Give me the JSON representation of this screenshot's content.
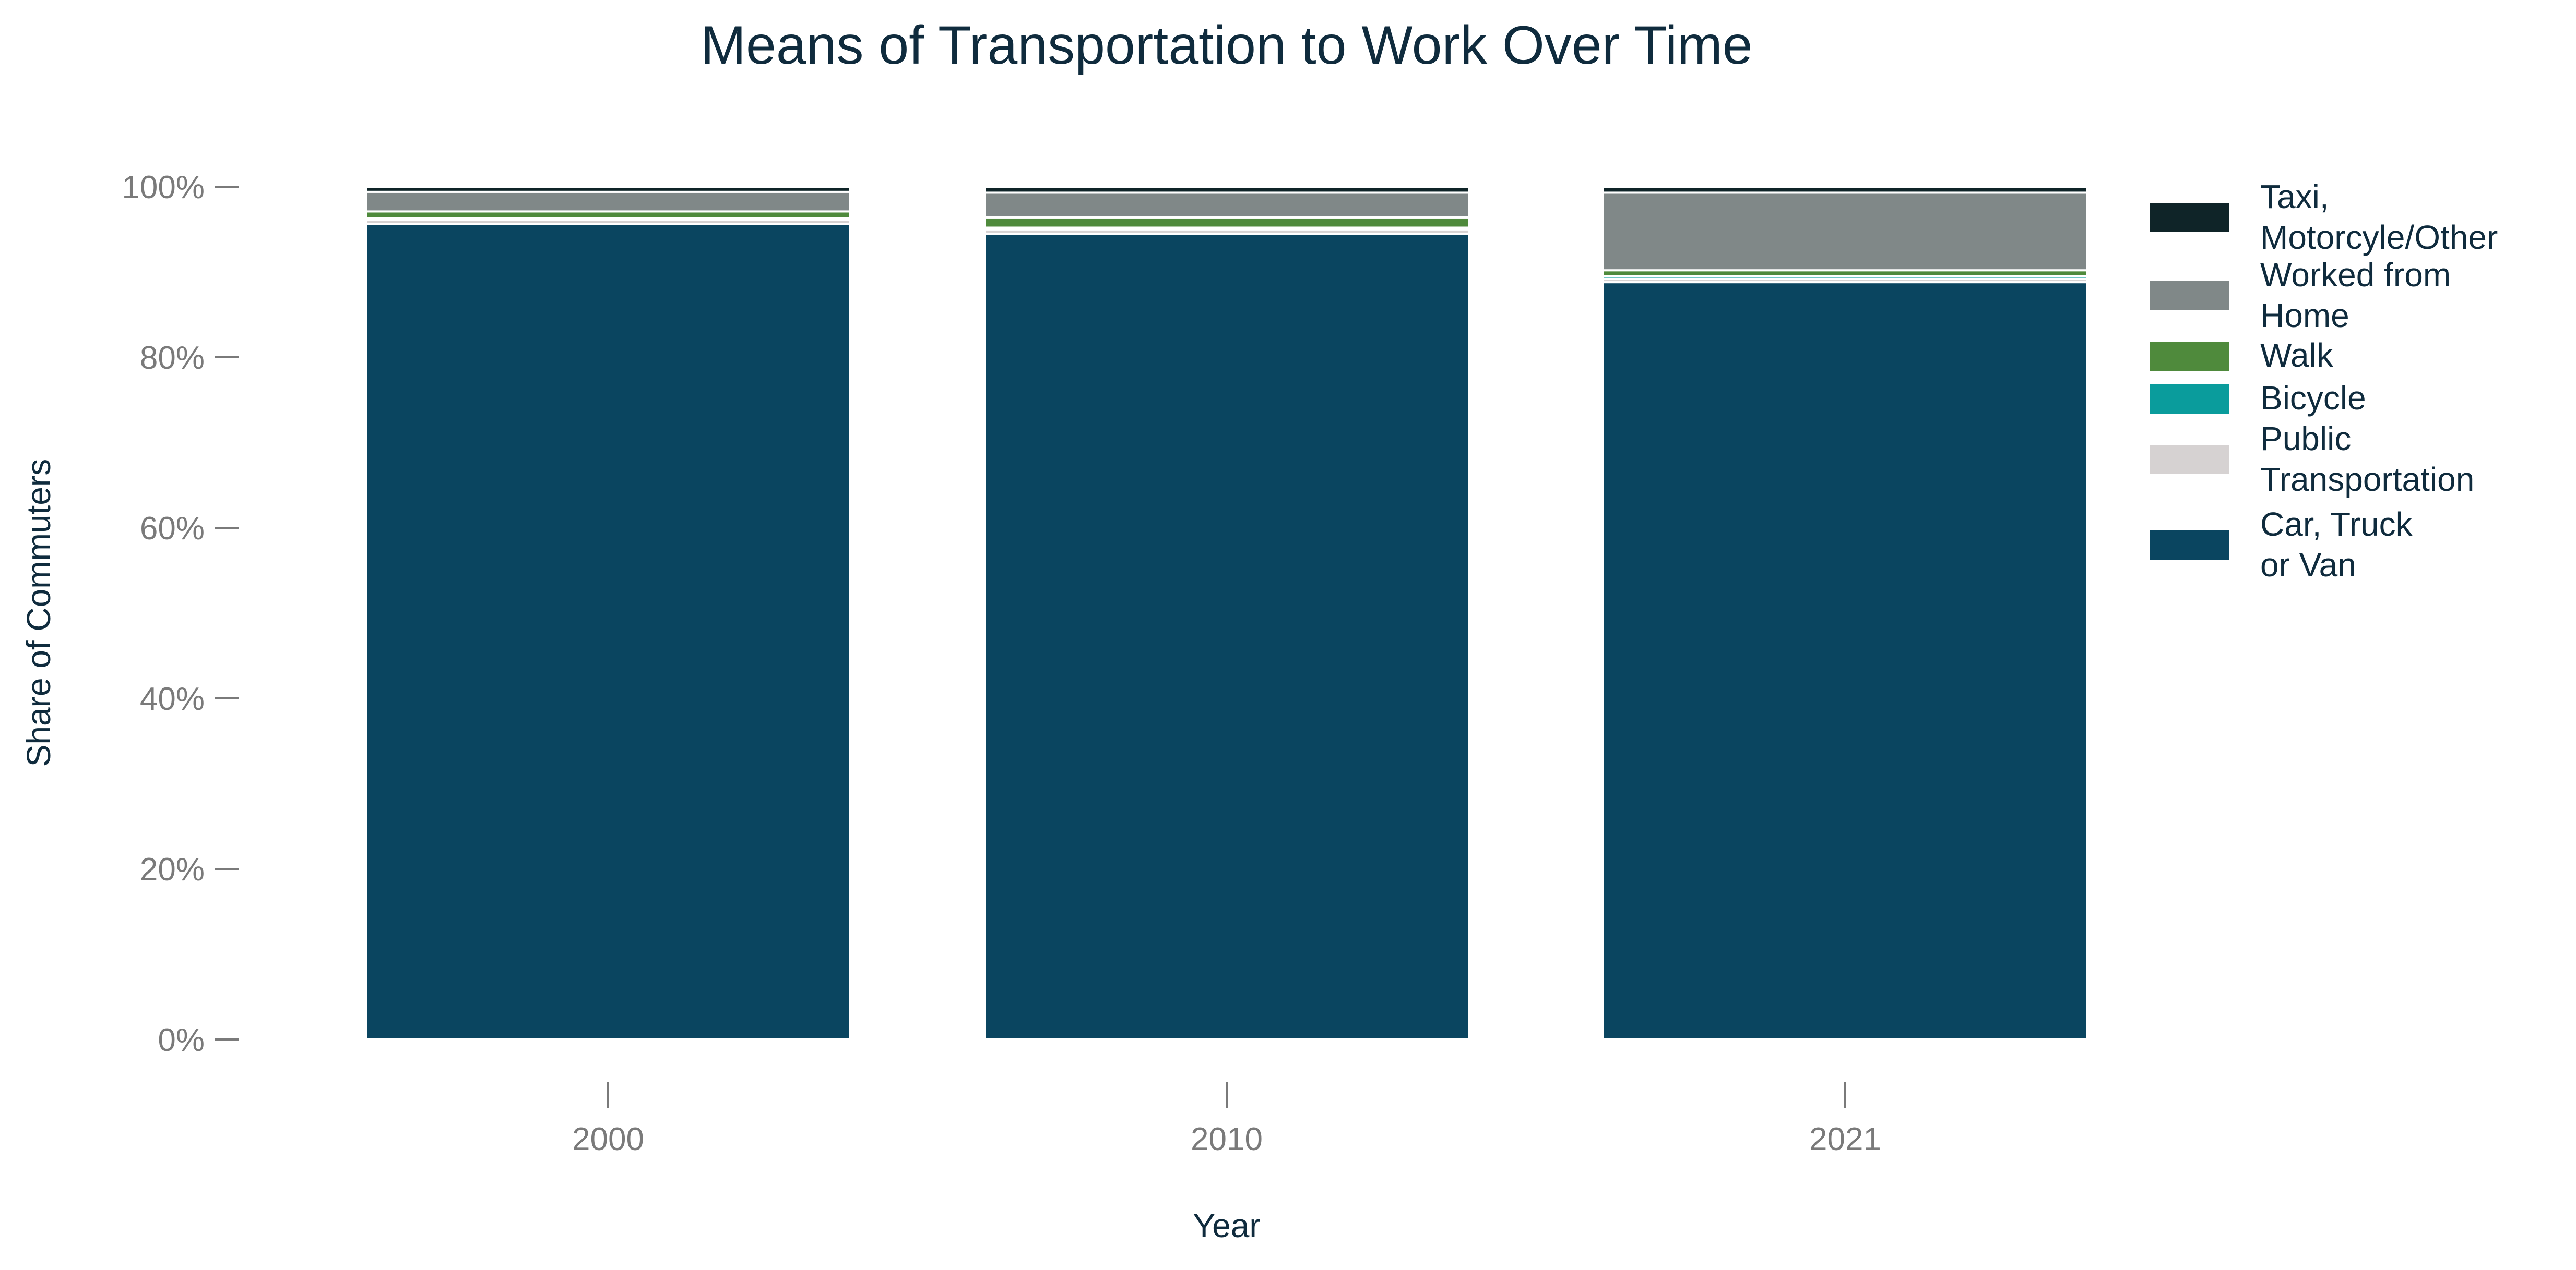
{
  "chart_data": {
    "type": "bar",
    "stacked": true,
    "title": "Means of Transportation to Work Over Time",
    "xlabel": "Year",
    "ylabel": "Share of Commuters",
    "ylim": [
      0,
      100
    ],
    "y_ticks": [
      "0%",
      "20%",
      "40%",
      "60%",
      "80%",
      "100%"
    ],
    "categories": [
      "2000",
      "2010",
      "2021"
    ],
    "legend_position": "right",
    "grid": false,
    "series": [
      {
        "name": "Car, Truck or Van",
        "legend_lines": [
          "Car, Truck",
          "or Van"
        ],
        "color": "#0a4560",
        "values": [
          95.6,
          94.5,
          88.8
        ]
      },
      {
        "name": "Public Transportation",
        "legend_lines": [
          "Public",
          "Transportation"
        ],
        "color": "#d6d2d2",
        "values": [
          0.5,
          0.5,
          0.4
        ]
      },
      {
        "name": "Bicycle",
        "legend_lines": [
          "Bicycle"
        ],
        "color": "#0a9c9c",
        "values": [
          0.2,
          0.2,
          0.3
        ]
      },
      {
        "name": "Walk",
        "legend_lines": [
          "Walk"
        ],
        "color": "#4f8a3c",
        "values": [
          0.8,
          1.2,
          0.7
        ]
      },
      {
        "name": "Worked from Home",
        "legend_lines": [
          "Worked from",
          "Home"
        ],
        "color": "#808888",
        "values": [
          2.3,
          2.9,
          9.1
        ]
      },
      {
        "name": "Taxi, Motorcyle/Other",
        "legend_lines": [
          "Taxi,",
          "Motorcyle/Other"
        ],
        "color": "#0f2428",
        "values": [
          0.6,
          0.7,
          0.7
        ]
      }
    ]
  }
}
